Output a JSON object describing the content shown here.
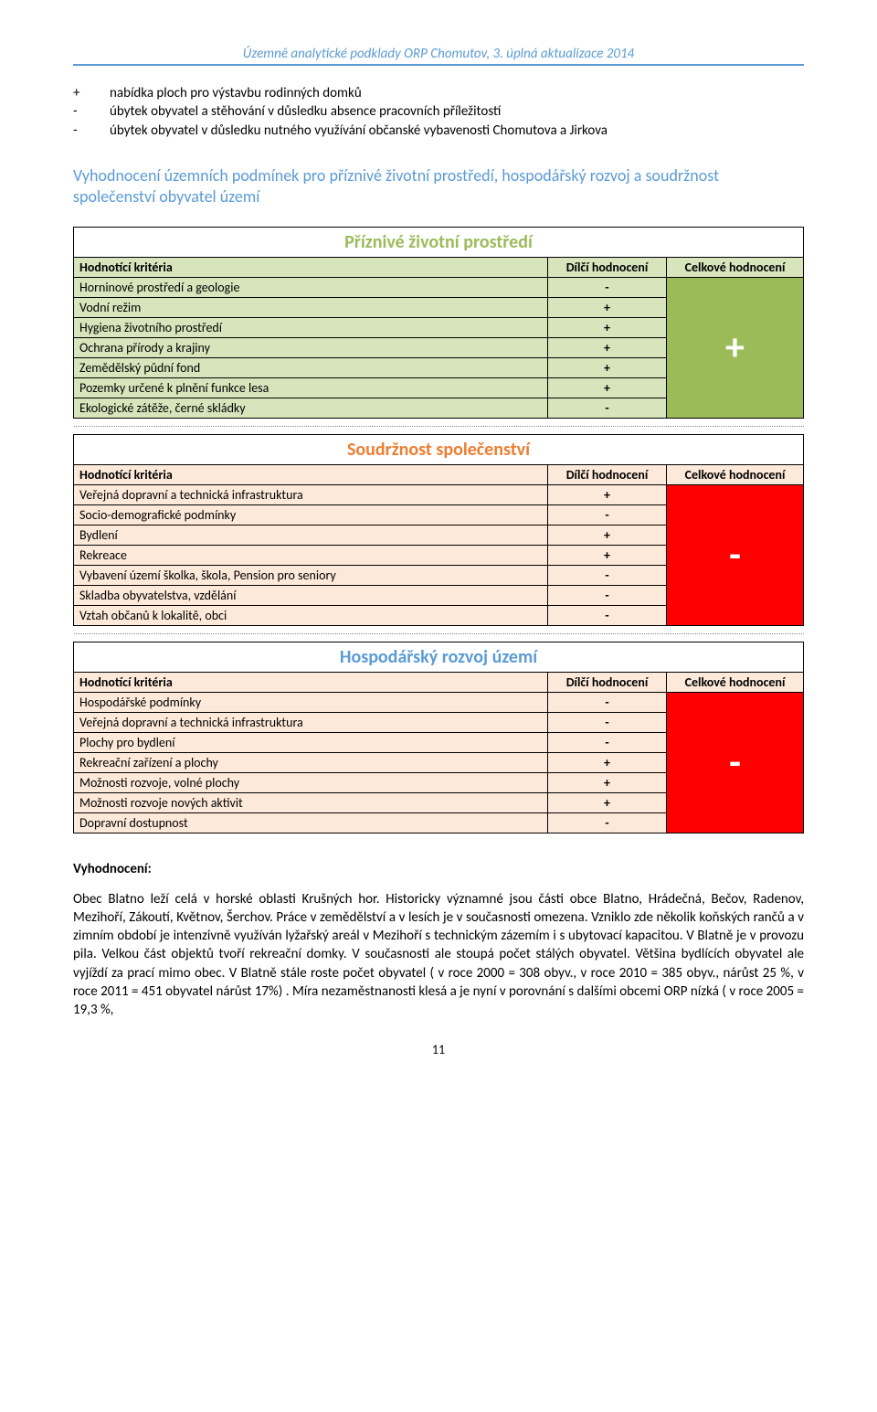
{
  "header": "Územně analytické podklady ORP Chomutov, 3. úplná aktualizace 2014",
  "bullets": [
    {
      "sign": "+",
      "text": "nabídka ploch pro výstavbu rodinných domků"
    },
    {
      "sign": "-",
      "text": "úbytek obyvatel a stěhování v důsledku absence pracovních příležitostí"
    },
    {
      "sign": "-",
      "text": "úbytek obyvatel v důsledku nutného využívání občanské vybavenosti Chomutova a Jirkova"
    }
  ],
  "subheading": "Vyhodnocení územních podmínek pro příznivé životní prostředí, hospodářský rozvoj a soudržnost společenství obyvatel území",
  "labels": {
    "criteria": "Hodnotící kritéria",
    "partial": "Dílčí hodnocení",
    "overall": "Celkové hodnocení"
  },
  "sections": [
    {
      "title": "Příznivé životní prostředí",
      "title_class": "title-green",
      "row_class": "bg-green-light",
      "overall_class": "bg-green-dark",
      "overall": "+",
      "rows": [
        {
          "label": "Horninové prostředí a geologie",
          "val": "-"
        },
        {
          "label": "Vodní režim",
          "val": "+"
        },
        {
          "label": "Hygiena životního prostředí",
          "val": "+"
        },
        {
          "label": "Ochrana přírody a krajiny",
          "val": "+"
        },
        {
          "label": "Zemědělský půdní fond",
          "val": "+"
        },
        {
          "label": "Pozemky určené k plnění funkce lesa",
          "val": "+"
        },
        {
          "label": "Ekologické zátěže, černé skládky",
          "val": "-"
        }
      ]
    },
    {
      "title": "Soudržnost společenství",
      "title_class": "title-orange",
      "row_class": "bg-orange-light",
      "overall_class": "bg-red",
      "overall": "-",
      "rows": [
        {
          "label": "Veřejná dopravní a technická infrastruktura",
          "val": "+"
        },
        {
          "label": "Socio-demografické podmínky",
          "val": "-"
        },
        {
          "label": "Bydlení",
          "val": "+"
        },
        {
          "label": "Rekreace",
          "val": "+"
        },
        {
          "label": "Vybavení území školka, škola, Pension pro seniory",
          "val": "-"
        },
        {
          "label": "Skladba obyvatelstva, vzdělání",
          "val": "-"
        },
        {
          "label": "Vztah občanů k lokalitě, obci",
          "val": "-"
        }
      ]
    },
    {
      "title": "Hospodářský rozvoj území",
      "title_class": "title-blue",
      "row_class": "bg-orange-light",
      "overall_class": "bg-red",
      "overall": "-",
      "rows": [
        {
          "label": "Hospodářské podmínky",
          "val": "-"
        },
        {
          "label": "Veřejná dopravní a technická infrastruktura",
          "val": "-"
        },
        {
          "label": "Plochy pro bydlení",
          "val": "-"
        },
        {
          "label": "Rekreační zařízení a plochy",
          "val": "+"
        },
        {
          "label": "Možnosti rozvoje, volné plochy",
          "val": "+"
        },
        {
          "label": "Možnosti rozvoje nových aktivit",
          "val": "+"
        },
        {
          "label": "Dopravní dostupnost",
          "val": "-"
        }
      ]
    }
  ],
  "evaluation": {
    "heading": "Vyhodnocení:",
    "body": "Obec Blatno leží celá v horské oblasti Krušných hor. Historicky významné jsou části obce Blatno, Hrádečná, Bečov, Radenov, Mezihoří, Zákoutí, Květnov, Šerchov. Práce v zemědělství a v lesích je v současnosti omezena. Vzniklo zde několik koňských rančů a v zimním období je intenzivně využíván lyžařský areál v Mezihoří s technickým zázemím i s ubytovací kapacitou. V Blatně je v provozu pila. Velkou část objektů tvoří rekreační domky. V současnosti ale stoupá počet stálých obyvatel. Většina bydlících obyvatel ale vyjíždí za prací mimo obec. V Blatně stále roste počet obyvatel ( v roce 2000 = 308 obyv., v roce 2010 = 385 obyv., nárůst  25 %, v roce 2011 = 451 obyvatel nárůst 17%) . Míra nezaměstnanosti klesá a je nyní v porovnání s dalšími obcemi ORP nízká ( v roce 2005 = 19,3 %,"
  },
  "page_number": "11"
}
